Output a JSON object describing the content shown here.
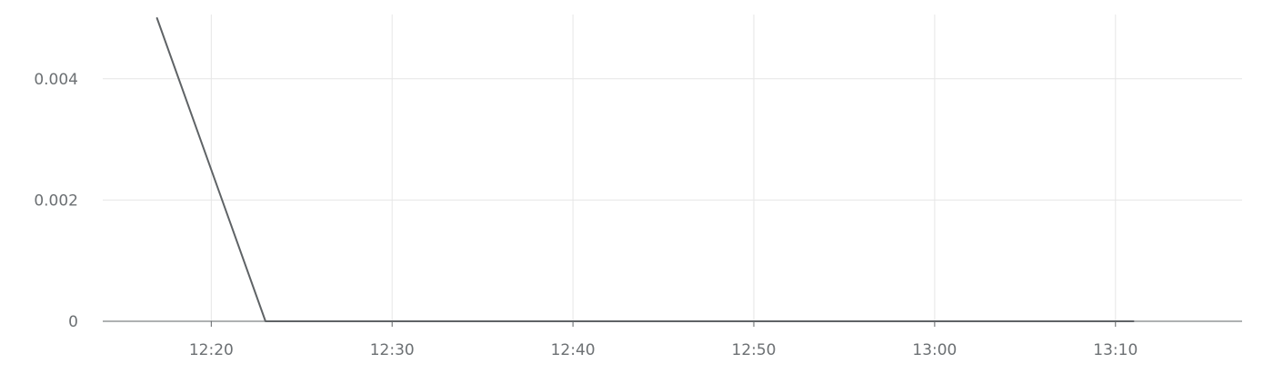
{
  "chart_data": {
    "type": "line",
    "title": "",
    "xlabel": "",
    "ylabel": "",
    "x_axis_kind": "time",
    "xlim": [
      "12:14",
      "13:17"
    ],
    "ylim": [
      0,
      0.005
    ],
    "x_ticks": [
      "12:20",
      "12:30",
      "12:40",
      "12:50",
      "13:00",
      "13:10"
    ],
    "y_ticks": [
      0,
      0.002,
      0.004
    ],
    "y_tick_labels": [
      "0",
      "0.002",
      "0.004"
    ],
    "grid": true,
    "legend": "none",
    "series": [
      {
        "color": "#5f6366",
        "x": [
          "12:17",
          "12:23",
          "13:11"
        ],
        "y": [
          0.005,
          0,
          0
        ]
      }
    ]
  }
}
